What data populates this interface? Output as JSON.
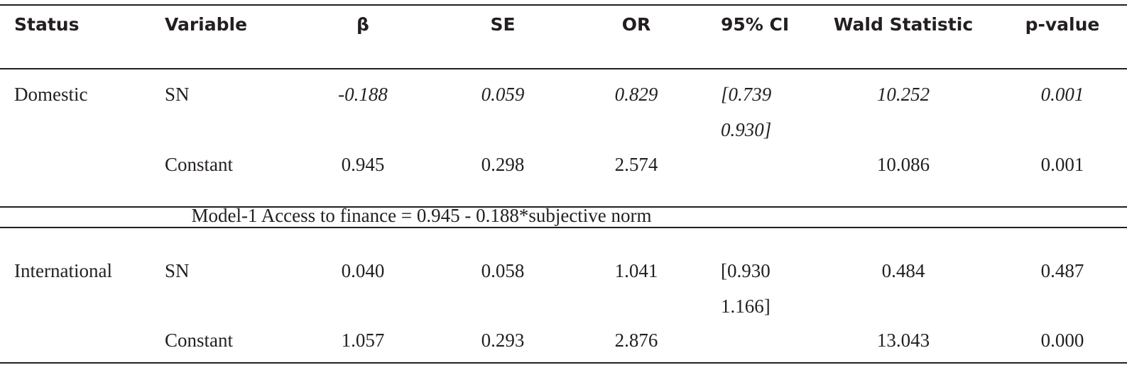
{
  "table": {
    "header": [
      "Status",
      "Variable",
      "β",
      "SE",
      "OR",
      "95% CI",
      "Wald Statistic",
      "p-value"
    ],
    "rows": [
      [
        "Domestic",
        "SN",
        "-0.188",
        "0.059",
        "0.829",
        "[0.739 0.930]",
        "10.252",
        "0.001"
      ],
      [
        null,
        "Constant",
        "0.945",
        "0.298",
        "2.574",
        null,
        "10.086",
        "0.001"
      ],
      [
        "International",
        "SN",
        "0.040",
        "0.058",
        "1.041",
        "[0.930 1.166]",
        "0.484",
        "0.487"
      ],
      [
        null,
        "Constant",
        "1.057",
        "0.293",
        "2.876",
        null,
        "13.043",
        "0.000"
      ]
    ],
    "note": "Model-1 Access to finance =  0.945 - 0.188*subjective norm"
  }
}
